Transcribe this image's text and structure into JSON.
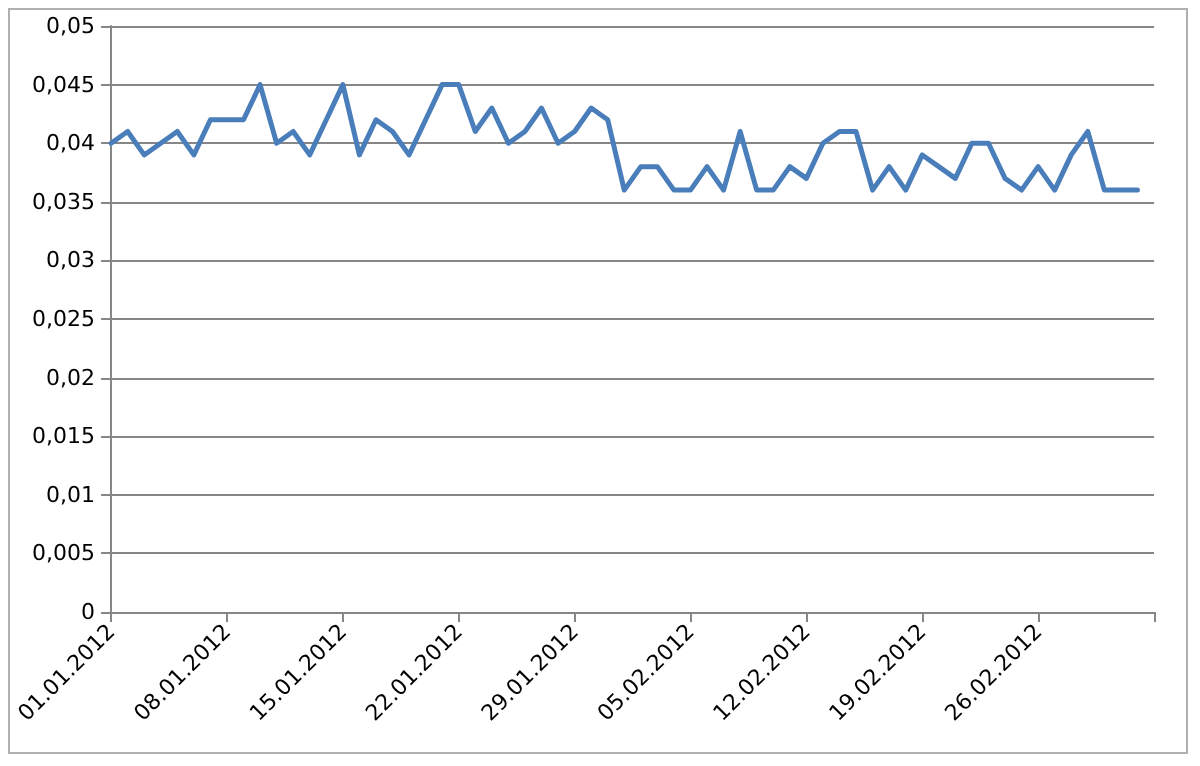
{
  "chart_data": {
    "type": "line",
    "x": [
      "2012-01-01",
      "2012-01-02",
      "2012-01-03",
      "2012-01-04",
      "2012-01-05",
      "2012-01-06",
      "2012-01-07",
      "2012-01-08",
      "2012-01-09",
      "2012-01-10",
      "2012-01-11",
      "2012-01-12",
      "2012-01-13",
      "2012-01-14",
      "2012-01-15",
      "2012-01-16",
      "2012-01-17",
      "2012-01-18",
      "2012-01-19",
      "2012-01-20",
      "2012-01-21",
      "2012-01-22",
      "2012-01-23",
      "2012-01-24",
      "2012-01-25",
      "2012-01-26",
      "2012-01-27",
      "2012-01-28",
      "2012-01-29",
      "2012-01-30",
      "2012-01-31",
      "2012-02-01",
      "2012-02-02",
      "2012-02-03",
      "2012-02-04",
      "2012-02-05",
      "2012-02-06",
      "2012-02-07",
      "2012-02-08",
      "2012-02-09",
      "2012-02-10",
      "2012-02-11",
      "2012-02-12",
      "2012-02-13",
      "2012-02-14",
      "2012-02-15",
      "2012-02-16",
      "2012-02-17",
      "2012-02-18",
      "2012-02-19",
      "2012-02-20",
      "2012-02-21",
      "2012-02-22",
      "2012-02-23",
      "2012-02-24",
      "2012-02-25",
      "2012-02-26",
      "2012-02-27",
      "2012-02-28",
      "2012-02-29",
      "2012-03-01",
      "2012-03-02",
      "2012-03-03"
    ],
    "series": [
      {
        "color": "#4a7ebb",
        "values": [
          0.04,
          0.041,
          0.039,
          0.04,
          0.041,
          0.039,
          0.042,
          0.042,
          0.042,
          0.045,
          0.04,
          0.041,
          0.039,
          0.042,
          0.045,
          0.039,
          0.042,
          0.041,
          0.039,
          0.042,
          0.045,
          0.045,
          0.041,
          0.043,
          0.04,
          0.041,
          0.043,
          0.04,
          0.041,
          0.043,
          0.042,
          0.036,
          0.038,
          0.038,
          0.036,
          0.036,
          0.038,
          0.036,
          0.041,
          0.036,
          0.036,
          0.038,
          0.037,
          0.04,
          0.041,
          0.041,
          0.036,
          0.038,
          0.036,
          0.039,
          0.038,
          0.037,
          0.04,
          0.04,
          0.037,
          0.036,
          0.038,
          0.036,
          0.039,
          0.041,
          0.036,
          0.036,
          0.036
        ]
      }
    ],
    "xlim": [
      "2012-01-01",
      "2012-03-04"
    ],
    "xticks": [
      {
        "value": "2012-01-01",
        "label": "01.01.2012"
      },
      {
        "value": "2012-01-08",
        "label": "08.01.2012"
      },
      {
        "value": "2012-01-15",
        "label": "15.01.2012"
      },
      {
        "value": "2012-01-22",
        "label": "22.01.2012"
      },
      {
        "value": "2012-01-29",
        "label": "29.01.2012"
      },
      {
        "value": "2012-02-05",
        "label": "05.02.2012"
      },
      {
        "value": "2012-02-12",
        "label": "12.02.2012"
      },
      {
        "value": "2012-02-19",
        "label": "19.02.2012"
      },
      {
        "value": "2012-02-26",
        "label": "26.02.2012"
      },
      {
        "value": "2012-03-04",
        "label": null
      }
    ],
    "ylim": [
      0,
      0.05
    ],
    "yticks": [
      0,
      {
        "value": 0.005,
        "label": "0,005"
      },
      {
        "value": 0.01,
        "label": "0,01"
      },
      {
        "value": 0.015,
        "label": "0,015"
      },
      {
        "value": 0.02,
        "label": "0,02"
      },
      {
        "value": 0.025,
        "label": "0,025"
      },
      {
        "value": 0.03,
        "label": "0,03"
      },
      {
        "value": 0.035,
        "label": "0,035"
      },
      {
        "value": 0.04,
        "label": "0,04"
      },
      {
        "value": 0.045,
        "label": "0,045"
      },
      {
        "value": 0.05,
        "label": "0,05"
      }
    ],
    "grid": "y",
    "marker": "none",
    "line_style": "solid"
  }
}
